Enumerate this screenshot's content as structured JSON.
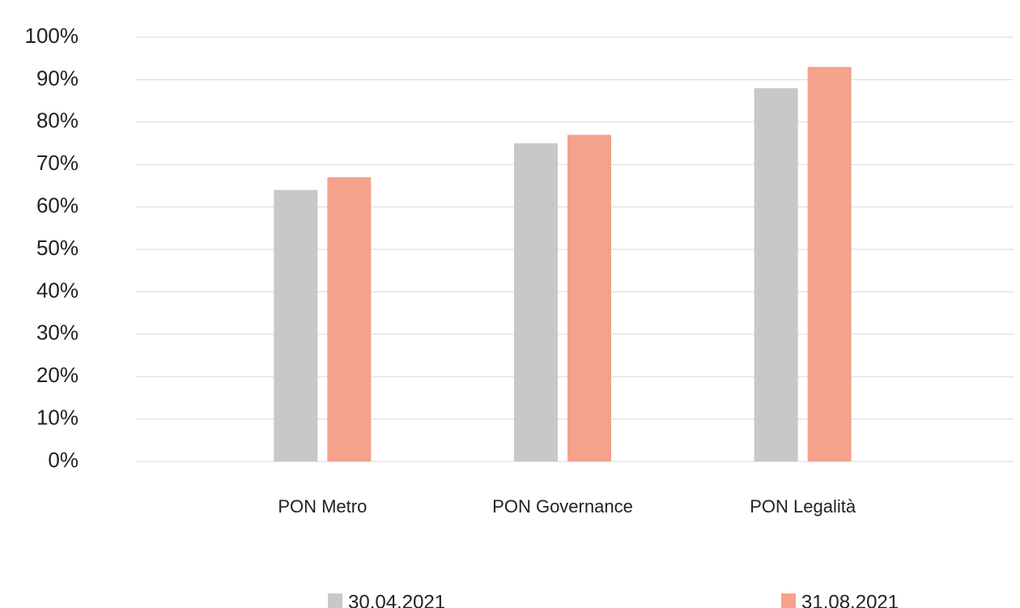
{
  "chart_data": {
    "type": "bar",
    "categories": [
      "PON Metro",
      "PON Governance",
      "PON Legalità"
    ],
    "series": [
      {
        "name": "30.04.2021",
        "color": "#c8c8c8",
        "values": [
          64,
          75,
          88
        ]
      },
      {
        "name": "31.08.2021",
        "color": "#f4a28c",
        "values": [
          67,
          77,
          93
        ]
      }
    ],
    "ylim": [
      0,
      100
    ],
    "yticks": [
      {
        "value": 0,
        "label": "0%"
      },
      {
        "value": 10,
        "label": "10%"
      },
      {
        "value": 20,
        "label": "20%"
      },
      {
        "value": 30,
        "label": "30%"
      },
      {
        "value": 40,
        "label": "40%"
      },
      {
        "value": 50,
        "label": "50%"
      },
      {
        "value": 60,
        "label": "60%"
      },
      {
        "value": 70,
        "label": "70%"
      },
      {
        "value": 80,
        "label": "80%"
      },
      {
        "value": 90,
        "label": "90%"
      },
      {
        "value": 100,
        "label": "100%"
      }
    ],
    "grid": true,
    "legend": "bottom"
  }
}
